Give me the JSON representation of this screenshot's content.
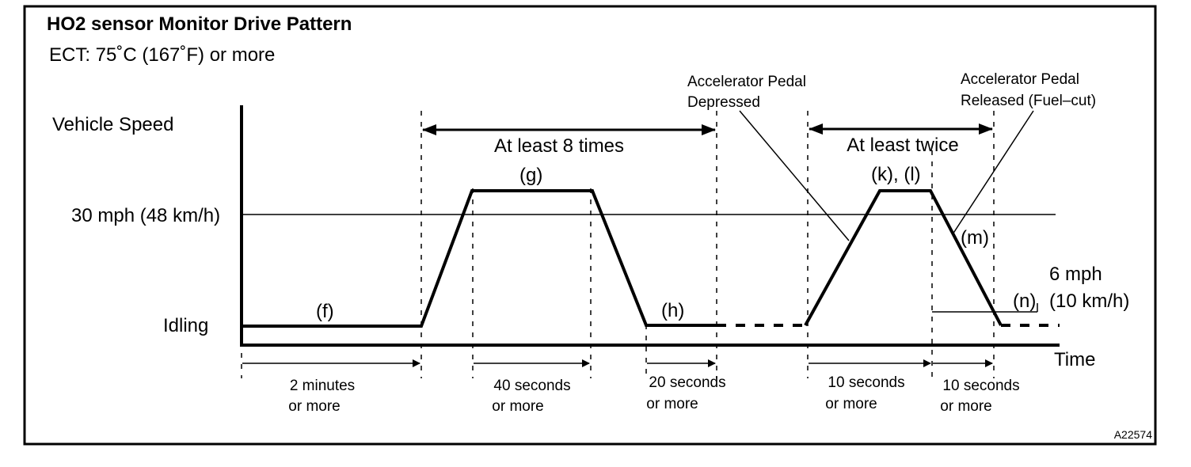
{
  "title": "HO2 sensor Monitor Drive Pattern",
  "condition": "ECT: 75˚C (167˚F) or more",
  "y_axis": {
    "label": "Vehicle Speed",
    "level_high": "30 mph (48 km/h)",
    "level_idle": "Idling"
  },
  "x_axis": {
    "label": "Time"
  },
  "stage_labels": {
    "f": "(f)",
    "g": "(g)",
    "h": "(h)",
    "kl": "(k), (l)",
    "m": "(m)",
    "n": "(n)"
  },
  "repeat_labels": {
    "first": "At least 8 times",
    "second": "At least twice"
  },
  "pedal_notes": {
    "depressed_line1": "Accelerator Pedal",
    "depressed_line2": "Depressed",
    "released_line1": "Accelerator Pedal",
    "released_line2": "Released (Fuel–cut)"
  },
  "speed_note": {
    "line1": "6 mph",
    "line2": "(10 km/h)"
  },
  "durations": [
    {
      "line1": "2 minutes",
      "line2": "or more"
    },
    {
      "line1": "40 seconds",
      "line2": "or more"
    },
    {
      "line1": "20 seconds",
      "line2": "or more"
    },
    {
      "line1": "10 seconds",
      "line2": "or more"
    },
    {
      "line1": "10 seconds",
      "line2": "or more"
    }
  ],
  "figure_code": "A22574"
}
